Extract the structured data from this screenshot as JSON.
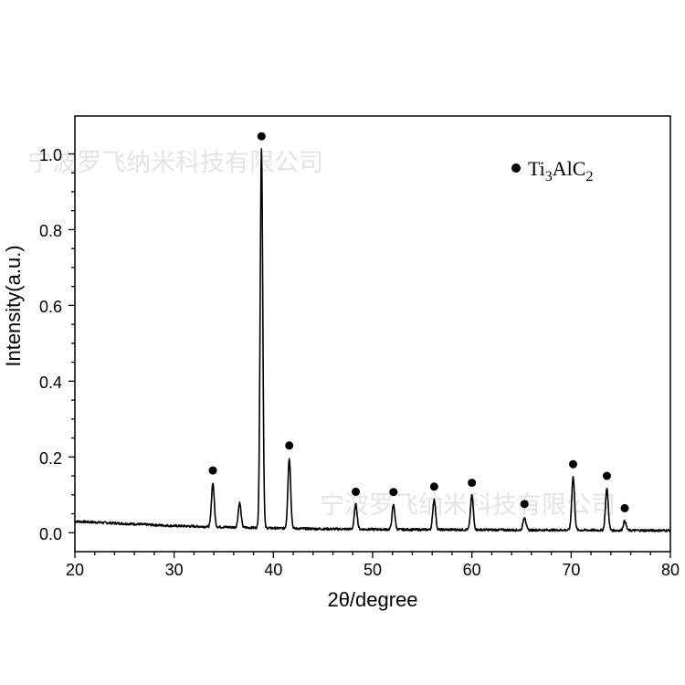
{
  "chart_data": {
    "type": "line",
    "xlabel": "2θ/degree",
    "ylabel": "Intensity(a.u.)",
    "xlim": [
      20,
      80
    ],
    "ylim": [
      -0.05,
      1.1
    ],
    "xticks": [
      "20",
      "30",
      "40",
      "50",
      "60",
      "70",
      "80"
    ],
    "yticks": [
      "0.0",
      "0.2",
      "0.4",
      "0.6",
      "0.8",
      "1.0"
    ],
    "legend": {
      "marker": "filled-circle",
      "label_base": "Ti",
      "sub1": "3",
      "label_mid": "AlC",
      "sub2": "2",
      "placement": "top-right"
    },
    "baseline": [
      [
        20,
        0.03
      ],
      [
        25,
        0.024
      ],
      [
        30,
        0.018
      ],
      [
        35,
        0.015
      ],
      [
        40,
        0.012
      ],
      [
        45,
        0.01
      ],
      [
        50,
        0.009
      ],
      [
        55,
        0.008
      ],
      [
        60,
        0.008
      ],
      [
        65,
        0.007
      ],
      [
        70,
        0.007
      ],
      [
        75,
        0.006
      ],
      [
        80,
        0.006
      ]
    ],
    "peaks": [
      {
        "x": 33.9,
        "y": 0.115,
        "marked": true
      },
      {
        "x": 36.6,
        "y": 0.065,
        "marked": false
      },
      {
        "x": 38.8,
        "y": 1.0,
        "marked": true
      },
      {
        "x": 41.6,
        "y": 0.185,
        "marked": true
      },
      {
        "x": 48.3,
        "y": 0.065,
        "marked": true
      },
      {
        "x": 52.1,
        "y": 0.065,
        "marked": true
      },
      {
        "x": 56.2,
        "y": 0.08,
        "marked": true
      },
      {
        "x": 60.0,
        "y": 0.09,
        "marked": true
      },
      {
        "x": 65.3,
        "y": 0.035,
        "marked": true
      },
      {
        "x": 70.2,
        "y": 0.14,
        "marked": true
      },
      {
        "x": 73.6,
        "y": 0.11,
        "marked": true
      },
      {
        "x": 75.4,
        "y": 0.025,
        "marked": true
      }
    ],
    "grid": false
  },
  "watermarks": [
    "宁波罗飞纳米科技有限公司",
    "宁波罗飞纳米科技有限公司"
  ]
}
